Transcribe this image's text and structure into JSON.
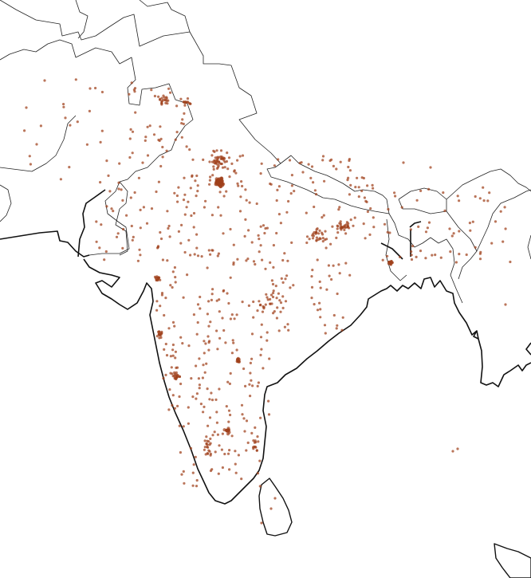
{
  "map": {
    "region": "South Asia",
    "style": {
      "point_color": "#a0401a",
      "coastline_color": "#111111",
      "border_color": "#222222",
      "background": "#ffffff"
    }
  }
}
